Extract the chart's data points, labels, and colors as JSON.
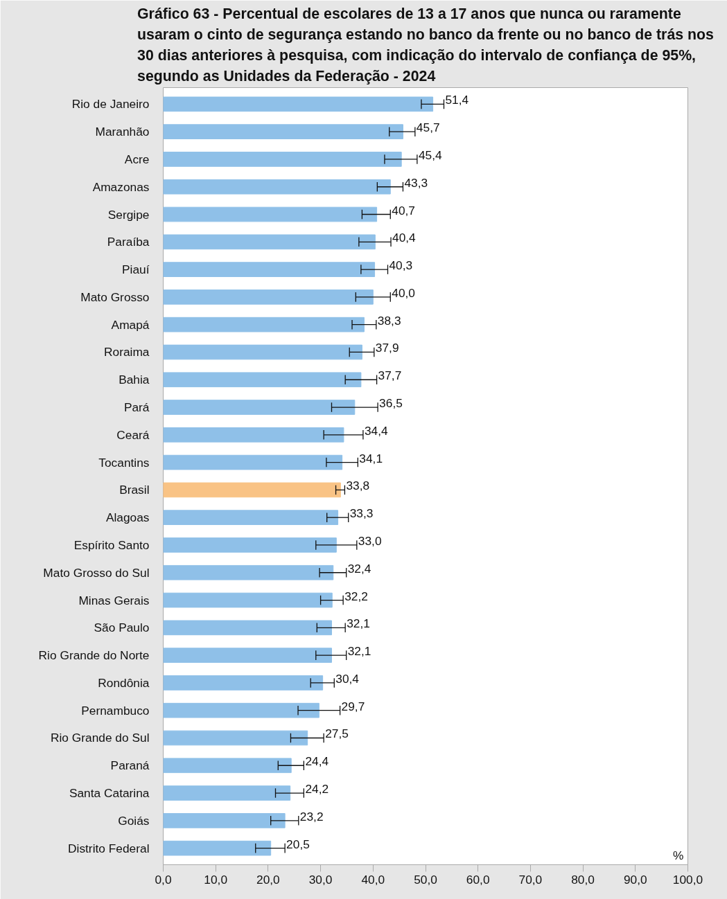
{
  "chart_data": {
    "type": "bar",
    "orientation": "horizontal",
    "title": "Gráfico 63 - Percentual de escolares de 13 a 17 anos que nunca ou raramente\nusaram o cinto de segurança estando no banco da frente ou no banco de trás nos\n30 dias anteriores à pesquisa, com indicação do intervalo de confiança de 95%,\nsegundo as Unidades da Federação - 2024",
    "categories": [
      "Rio de Janeiro",
      "Maranhão",
      "Acre",
      "Amazonas",
      "Sergipe",
      "Paraíba",
      "Piauí",
      "Mato Grosso",
      "Amapá",
      "Roraima",
      "Bahia",
      "Pará",
      "Ceará",
      "Tocantins",
      "Brasil",
      "Alagoas",
      "Espírito Santo",
      "Mato Grosso do Sul",
      "Minas Gerais",
      "São Paulo",
      "Rio Grande do Norte",
      "Rondônia",
      "Pernambuco",
      "Rio Grande do Sul",
      "Paraná",
      "Santa Catarina",
      "Goiás",
      "Distrito Federal"
    ],
    "values": [
      51.4,
      45.7,
      45.4,
      43.3,
      40.7,
      40.4,
      40.3,
      40.0,
      38.3,
      37.9,
      37.7,
      36.5,
      34.4,
      34.1,
      33.8,
      33.3,
      33.0,
      32.4,
      32.2,
      32.1,
      32.1,
      30.4,
      29.7,
      27.5,
      24.4,
      24.2,
      23.2,
      20.5
    ],
    "value_labels": [
      "51,4",
      "45,7",
      "45,4",
      "43,3",
      "40,7",
      "40,4",
      "40,3",
      "40,0",
      "38,3",
      "37,9",
      "37,7",
      "36,5",
      "34,4",
      "34,1",
      "33,8",
      "33,3",
      "33,0",
      "32,4",
      "32,2",
      "32,1",
      "32,1",
      "30,4",
      "29,7",
      "27,5",
      "24,4",
      "24,2",
      "23,2",
      "20,5"
    ],
    "errors": [
      [
        49.2,
        53.5
      ],
      [
        43.1,
        48.0
      ],
      [
        42.2,
        48.4
      ],
      [
        40.8,
        45.7
      ],
      [
        37.9,
        43.3
      ],
      [
        37.3,
        43.4
      ],
      [
        37.7,
        42.8
      ],
      [
        36.7,
        43.3
      ],
      [
        36.0,
        40.6
      ],
      [
        35.5,
        40.2
      ],
      [
        34.7,
        40.7
      ],
      [
        32.1,
        40.9
      ],
      [
        30.6,
        38.1
      ],
      [
        31.1,
        37.1
      ],
      [
        32.9,
        34.6
      ],
      [
        31.2,
        35.3
      ],
      [
        29.1,
        36.9
      ],
      [
        29.8,
        34.9
      ],
      [
        30.0,
        34.3
      ],
      [
        29.3,
        34.7
      ],
      [
        29.1,
        34.9
      ],
      [
        28.1,
        32.6
      ],
      [
        25.7,
        33.7
      ],
      [
        24.3,
        30.6
      ],
      [
        21.9,
        26.8
      ],
      [
        21.4,
        26.8
      ],
      [
        20.5,
        25.8
      ],
      [
        17.6,
        23.2
      ]
    ],
    "colors": [
      "#8fc0e8",
      "#8fc0e8",
      "#8fc0e8",
      "#8fc0e8",
      "#8fc0e8",
      "#8fc0e8",
      "#8fc0e8",
      "#8fc0e8",
      "#8fc0e8",
      "#8fc0e8",
      "#8fc0e8",
      "#8fc0e8",
      "#8fc0e8",
      "#8fc0e8",
      "#f9c385",
      "#8fc0e8",
      "#8fc0e8",
      "#8fc0e8",
      "#8fc0e8",
      "#8fc0e8",
      "#8fc0e8",
      "#8fc0e8",
      "#8fc0e8",
      "#8fc0e8",
      "#8fc0e8",
      "#8fc0e8",
      "#8fc0e8",
      "#8fc0e8"
    ],
    "xlim": [
      0,
      100
    ],
    "xticks": [
      {
        "value": 0,
        "label": "0,0"
      },
      {
        "value": 10,
        "label": "10,0"
      },
      {
        "value": 20,
        "label": "20,0"
      },
      {
        "value": 30,
        "label": "30,0"
      },
      {
        "value": 40,
        "label": "40,0"
      },
      {
        "value": 50,
        "label": "50,0"
      },
      {
        "value": 60,
        "label": "60,0"
      },
      {
        "value": 70,
        "label": "70,0"
      },
      {
        "value": 80,
        "label": "80,0"
      },
      {
        "value": 90,
        "label": "90,0"
      },
      {
        "value": 100,
        "label": "100,0"
      }
    ],
    "xlabel": "%",
    "grid": false
  }
}
